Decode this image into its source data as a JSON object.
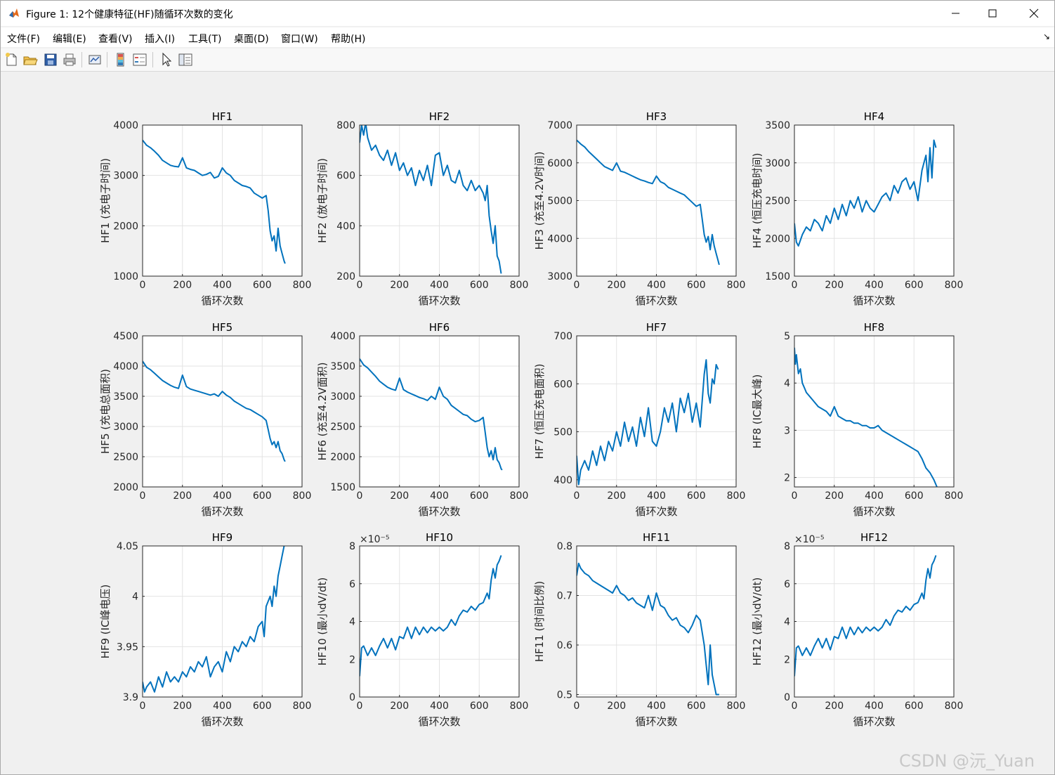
{
  "window": {
    "title": "Figure 1: 12个健康特征(HF)随循环次数的变化"
  },
  "menu": {
    "items": [
      "文件(F)",
      "编辑(E)",
      "查看(V)",
      "插入(I)",
      "工具(T)",
      "桌面(D)",
      "窗口(W)",
      "帮助(H)"
    ]
  },
  "toolbar": {
    "icons": [
      "new-figure-icon",
      "open-file-icon",
      "save-icon",
      "print-icon",
      "link-plot-icon",
      "insert-colorbar-icon",
      "insert-legend-icon",
      "edit-plot-icon",
      "property-inspector-icon"
    ]
  },
  "colors": {
    "line": "#0072BD",
    "grid": "#e3e3e3",
    "figure_bg": "#f0f0f0"
  },
  "watermark": "CSDN @沅_Yuan",
  "chart_data": [
    {
      "type": "line",
      "title": "HF1",
      "xlabel": "循环次数",
      "ylabel": "HF1 (充电子时间)",
      "xlim": [
        0,
        800
      ],
      "ylim": [
        1000,
        4000
      ],
      "xticks": [
        "0",
        "200",
        "400",
        "600",
        "800"
      ],
      "yticks": [
        "1000",
        "2000",
        "3000",
        "4000"
      ],
      "grid": true,
      "multiplier": "",
      "x": [
        0,
        20,
        40,
        60,
        80,
        100,
        120,
        140,
        160,
        180,
        200,
        220,
        240,
        260,
        280,
        300,
        320,
        340,
        360,
        380,
        400,
        420,
        440,
        460,
        480,
        500,
        520,
        540,
        560,
        580,
        600,
        620,
        630,
        640,
        650,
        660,
        670,
        680,
        690,
        700,
        710,
        715
      ],
      "y": [
        3700,
        3600,
        3550,
        3480,
        3400,
        3300,
        3250,
        3200,
        3180,
        3170,
        3350,
        3150,
        3120,
        3100,
        3050,
        3000,
        3020,
        3060,
        2950,
        2980,
        3150,
        3050,
        3000,
        2900,
        2850,
        2800,
        2780,
        2750,
        2650,
        2600,
        2550,
        2600,
        2300,
        1900,
        1700,
        1800,
        1500,
        1950,
        1600,
        1450,
        1300,
        1250
      ]
    },
    {
      "type": "line",
      "title": "HF2",
      "xlabel": "循环次数",
      "ylabel": "HF2 (放电子时间)",
      "xlim": [
        0,
        800
      ],
      "ylim": [
        200,
        800
      ],
      "xticks": [
        "0",
        "200",
        "400",
        "600",
        "800"
      ],
      "yticks": [
        "200",
        "400",
        "600",
        "800"
      ],
      "grid": true,
      "multiplier": "",
      "x": [
        0,
        10,
        20,
        30,
        40,
        60,
        80,
        100,
        120,
        140,
        160,
        180,
        200,
        220,
        240,
        260,
        280,
        300,
        320,
        340,
        360,
        380,
        400,
        420,
        440,
        460,
        480,
        500,
        520,
        540,
        560,
        580,
        600,
        620,
        630,
        640,
        650,
        660,
        670,
        680,
        690,
        700,
        710
      ],
      "y": [
        730,
        800,
        760,
        810,
        750,
        700,
        720,
        680,
        660,
        700,
        640,
        690,
        620,
        650,
        600,
        630,
        560,
        620,
        580,
        640,
        560,
        680,
        690,
        600,
        640,
        580,
        570,
        620,
        560,
        540,
        580,
        540,
        560,
        530,
        500,
        560,
        440,
        380,
        330,
        400,
        280,
        260,
        210
      ]
    },
    {
      "type": "line",
      "title": "HF3",
      "xlabel": "循环次数",
      "ylabel": "HF3 (充至4.2V时间)",
      "xlim": [
        0,
        800
      ],
      "ylim": [
        3000,
        7000
      ],
      "xticks": [
        "0",
        "200",
        "400",
        "600",
        "800"
      ],
      "yticks": [
        "3000",
        "4000",
        "5000",
        "6000",
        "7000"
      ],
      "grid": true,
      "multiplier": "",
      "x": [
        0,
        20,
        40,
        60,
        80,
        100,
        120,
        140,
        160,
        180,
        200,
        220,
        240,
        260,
        280,
        300,
        320,
        340,
        360,
        380,
        400,
        420,
        440,
        460,
        480,
        500,
        520,
        540,
        560,
        580,
        600,
        620,
        630,
        640,
        650,
        660,
        670,
        680,
        690,
        700,
        710,
        715
      ],
      "y": [
        6600,
        6500,
        6420,
        6300,
        6200,
        6100,
        6000,
        5900,
        5850,
        5800,
        6000,
        5780,
        5750,
        5700,
        5650,
        5600,
        5550,
        5520,
        5480,
        5450,
        5650,
        5500,
        5450,
        5350,
        5300,
        5250,
        5200,
        5150,
        5050,
        4950,
        4850,
        4900,
        4500,
        4100,
        3900,
        4050,
        3700,
        4100,
        3800,
        3600,
        3400,
        3300
      ]
    },
    {
      "type": "line",
      "title": "HF4",
      "xlabel": "循环次数",
      "ylabel": "HF4 (恒压充电时间)",
      "xlim": [
        0,
        800
      ],
      "ylim": [
        1500,
        3500
      ],
      "xticks": [
        "0",
        "200",
        "400",
        "600",
        "800"
      ],
      "yticks": [
        "1500",
        "2000",
        "2500",
        "3000",
        "3500"
      ],
      "grid": true,
      "multiplier": "",
      "x": [
        0,
        10,
        20,
        40,
        60,
        80,
        100,
        120,
        140,
        160,
        180,
        200,
        220,
        240,
        260,
        280,
        300,
        320,
        340,
        360,
        380,
        400,
        420,
        440,
        460,
        480,
        500,
        520,
        540,
        560,
        580,
        600,
        620,
        640,
        650,
        660,
        670,
        680,
        690,
        700,
        710
      ],
      "y": [
        2200,
        1950,
        1900,
        2050,
        2150,
        2100,
        2250,
        2200,
        2100,
        2300,
        2200,
        2400,
        2250,
        2450,
        2300,
        2500,
        2400,
        2550,
        2350,
        2500,
        2400,
        2350,
        2450,
        2550,
        2600,
        2500,
        2700,
        2600,
        2750,
        2800,
        2650,
        2750,
        2500,
        2900,
        3000,
        3100,
        2750,
        3200,
        2800,
        3300,
        3200
      ]
    },
    {
      "type": "line",
      "title": "HF5",
      "xlabel": "循环次数",
      "ylabel": "HF5 (充电总面积)",
      "xlim": [
        0,
        800
      ],
      "ylim": [
        2000,
        4500
      ],
      "xticks": [
        "0",
        "200",
        "400",
        "600",
        "800"
      ],
      "yticks": [
        "2000",
        "2500",
        "3000",
        "3500",
        "4000",
        "4500"
      ],
      "grid": true,
      "multiplier": "",
      "x": [
        0,
        20,
        40,
        60,
        80,
        100,
        120,
        140,
        160,
        180,
        200,
        220,
        240,
        260,
        280,
        300,
        320,
        340,
        360,
        380,
        400,
        420,
        440,
        460,
        480,
        500,
        520,
        540,
        560,
        580,
        600,
        620,
        630,
        640,
        650,
        660,
        670,
        680,
        690,
        700,
        710,
        715
      ],
      "y": [
        4080,
        3980,
        3940,
        3880,
        3820,
        3760,
        3720,
        3680,
        3650,
        3630,
        3850,
        3660,
        3620,
        3600,
        3580,
        3560,
        3540,
        3520,
        3540,
        3500,
        3580,
        3520,
        3480,
        3420,
        3380,
        3340,
        3300,
        3280,
        3240,
        3200,
        3160,
        3100,
        2950,
        2800,
        2700,
        2750,
        2650,
        2750,
        2600,
        2550,
        2450,
        2420
      ]
    },
    {
      "type": "line",
      "title": "HF6",
      "xlabel": "循环次数",
      "ylabel": "HF6 (充至4.2V面积)",
      "xlim": [
        0,
        800
      ],
      "ylim": [
        1500,
        4000
      ],
      "xticks": [
        "0",
        "200",
        "400",
        "600",
        "800"
      ],
      "yticks": [
        "1500",
        "2000",
        "2500",
        "3000",
        "3500",
        "4000"
      ],
      "grid": true,
      "multiplier": "",
      "x": [
        0,
        20,
        40,
        60,
        80,
        100,
        120,
        140,
        160,
        180,
        200,
        220,
        240,
        260,
        280,
        300,
        320,
        340,
        360,
        380,
        400,
        420,
        440,
        460,
        480,
        500,
        520,
        540,
        560,
        580,
        600,
        620,
        630,
        640,
        650,
        660,
        670,
        680,
        690,
        700,
        710,
        715
      ],
      "y": [
        3620,
        3520,
        3470,
        3400,
        3330,
        3250,
        3200,
        3150,
        3120,
        3100,
        3300,
        3110,
        3070,
        3040,
        3010,
        2980,
        2960,
        2930,
        3000,
        2950,
        3150,
        3000,
        2950,
        2850,
        2800,
        2750,
        2700,
        2680,
        2620,
        2580,
        2600,
        2650,
        2400,
        2150,
        2000,
        2100,
        1950,
        2150,
        1950,
        1900,
        1800,
        1780
      ]
    },
    {
      "type": "line",
      "title": "HF7",
      "xlabel": "循环次数",
      "ylabel": "HF7 (恒压充电面积)",
      "xlim": [
        0,
        800
      ],
      "ylim": [
        385,
        700
      ],
      "xticks": [
        "0",
        "200",
        "400",
        "600",
        "800"
      ],
      "yticks": [
        "400",
        "500",
        "600",
        "700"
      ],
      "grid": true,
      "multiplier": "",
      "x": [
        0,
        10,
        20,
        40,
        60,
        80,
        100,
        120,
        140,
        160,
        180,
        200,
        220,
        240,
        260,
        280,
        300,
        320,
        340,
        360,
        380,
        400,
        420,
        440,
        460,
        480,
        500,
        520,
        540,
        560,
        580,
        600,
        620,
        640,
        650,
        660,
        670,
        680,
        690,
        700,
        710
      ],
      "y": [
        450,
        390,
        420,
        440,
        420,
        460,
        430,
        470,
        440,
        480,
        460,
        500,
        470,
        520,
        480,
        510,
        470,
        530,
        490,
        550,
        480,
        470,
        500,
        550,
        520,
        560,
        500,
        570,
        540,
        580,
        520,
        560,
        510,
        620,
        650,
        580,
        560,
        610,
        600,
        640,
        630
      ]
    },
    {
      "type": "line",
      "title": "HF8",
      "xlabel": "循环次数",
      "ylabel": "HF8 (IC最大峰)",
      "xlim": [
        0,
        800
      ],
      "ylim": [
        1.8,
        5
      ],
      "xticks": [
        "0",
        "200",
        "400",
        "600",
        "800"
      ],
      "yticks": [
        "2",
        "3",
        "4",
        "5"
      ],
      "grid": true,
      "multiplier": "",
      "x": [
        0,
        5,
        10,
        20,
        30,
        40,
        50,
        60,
        80,
        100,
        120,
        140,
        160,
        180,
        200,
        220,
        240,
        260,
        280,
        300,
        320,
        340,
        360,
        380,
        400,
        420,
        440,
        460,
        480,
        500,
        520,
        540,
        560,
        580,
        600,
        620,
        640,
        660,
        680,
        700,
        715
      ],
      "y": [
        4.75,
        4.4,
        4.6,
        4.2,
        4.3,
        4.0,
        3.9,
        3.8,
        3.7,
        3.6,
        3.5,
        3.45,
        3.4,
        3.3,
        3.5,
        3.3,
        3.25,
        3.2,
        3.2,
        3.15,
        3.15,
        3.1,
        3.1,
        3.05,
        3.05,
        3.1,
        3.0,
        2.95,
        2.9,
        2.85,
        2.8,
        2.75,
        2.7,
        2.65,
        2.6,
        2.55,
        2.4,
        2.2,
        2.1,
        1.95,
        1.8
      ]
    },
    {
      "type": "line",
      "title": "HF9",
      "xlabel": "循环次数",
      "ylabel": "HF9 (IC峰电压)",
      "xlim": [
        0,
        800
      ],
      "ylim": [
        3.9,
        4.05
      ],
      "xticks": [
        "0",
        "200",
        "400",
        "600",
        "800"
      ],
      "yticks": [
        "3.9",
        "3.95",
        "4",
        "4.05"
      ],
      "grid": true,
      "multiplier": "",
      "x": [
        0,
        10,
        20,
        40,
        60,
        80,
        100,
        120,
        140,
        160,
        180,
        200,
        220,
        240,
        260,
        280,
        300,
        320,
        340,
        360,
        380,
        400,
        420,
        440,
        460,
        480,
        500,
        520,
        540,
        560,
        580,
        600,
        610,
        620,
        640,
        650,
        660,
        670,
        680,
        690,
        700,
        710
      ],
      "y": [
        3.915,
        3.905,
        3.91,
        3.915,
        3.905,
        3.92,
        3.91,
        3.925,
        3.915,
        3.92,
        3.915,
        3.925,
        3.92,
        3.93,
        3.925,
        3.935,
        3.93,
        3.94,
        3.92,
        3.93,
        3.935,
        3.925,
        3.945,
        3.935,
        3.95,
        3.945,
        3.955,
        3.95,
        3.96,
        3.955,
        3.97,
        3.975,
        3.96,
        3.99,
        4.0,
        3.99,
        4.01,
        4.0,
        4.02,
        4.03,
        4.04,
        4.05
      ]
    },
    {
      "type": "line",
      "title": "HF10",
      "xlabel": "循环次数",
      "ylabel": "HF10 (最小dV/dt)",
      "xlim": [
        0,
        800
      ],
      "ylim": [
        0,
        8
      ],
      "xticks": [
        "0",
        "200",
        "400",
        "600",
        "800"
      ],
      "yticks": [
        "0",
        "2",
        "4",
        "6",
        "8"
      ],
      "grid": true,
      "multiplier": "×10⁻⁵",
      "x": [
        0,
        10,
        20,
        40,
        60,
        80,
        100,
        120,
        140,
        160,
        180,
        200,
        220,
        240,
        260,
        280,
        300,
        320,
        340,
        360,
        380,
        400,
        420,
        440,
        460,
        480,
        500,
        520,
        540,
        560,
        580,
        600,
        620,
        640,
        650,
        660,
        670,
        680,
        690,
        700,
        710
      ],
      "y": [
        1.1,
        2.6,
        2.7,
        2.2,
        2.6,
        2.2,
        2.7,
        3.1,
        2.6,
        3.1,
        2.5,
        3.2,
        3.1,
        3.7,
        3.1,
        3.7,
        3.3,
        3.7,
        3.4,
        3.7,
        3.5,
        3.7,
        3.5,
        3.7,
        4.1,
        3.8,
        4.3,
        4.6,
        4.5,
        4.8,
        4.6,
        4.9,
        5.0,
        5.5,
        5.2,
        6.2,
        6.8,
        6.3,
        7.0,
        7.2,
        7.5
      ]
    },
    {
      "type": "line",
      "title": "HF11",
      "xlabel": "循环次数",
      "ylabel": "HF11 (时间比例)",
      "xlim": [
        0,
        800
      ],
      "ylim": [
        0.495,
        0.8
      ],
      "xticks": [
        "0",
        "200",
        "400",
        "600",
        "800"
      ],
      "yticks": [
        "0.5",
        "0.6",
        "0.7",
        "0.8"
      ],
      "grid": true,
      "multiplier": "",
      "x": [
        0,
        10,
        20,
        40,
        60,
        80,
        100,
        120,
        140,
        160,
        180,
        200,
        220,
        240,
        260,
        280,
        300,
        320,
        340,
        360,
        380,
        400,
        420,
        440,
        460,
        480,
        500,
        520,
        540,
        560,
        580,
        600,
        620,
        640,
        650,
        660,
        670,
        680,
        690,
        700,
        710,
        715
      ],
      "y": [
        0.74,
        0.765,
        0.755,
        0.745,
        0.74,
        0.73,
        0.725,
        0.72,
        0.715,
        0.71,
        0.705,
        0.72,
        0.705,
        0.7,
        0.69,
        0.695,
        0.685,
        0.68,
        0.675,
        0.7,
        0.67,
        0.705,
        0.68,
        0.675,
        0.66,
        0.65,
        0.655,
        0.64,
        0.635,
        0.625,
        0.64,
        0.66,
        0.65,
        0.6,
        0.56,
        0.52,
        0.6,
        0.54,
        0.52,
        0.5,
        0.5,
        0.5
      ]
    },
    {
      "type": "line",
      "title": "HF12",
      "xlabel": "循环次数",
      "ylabel": "HF12 (最小dV/dt)",
      "xlim": [
        0,
        800
      ],
      "ylim": [
        0,
        8
      ],
      "xticks": [
        "0",
        "200",
        "400",
        "600",
        "800"
      ],
      "yticks": [
        "0",
        "2",
        "4",
        "6",
        "8"
      ],
      "grid": true,
      "multiplier": "×10⁻⁵",
      "x": [
        0,
        10,
        20,
        40,
        60,
        80,
        100,
        120,
        140,
        160,
        180,
        200,
        220,
        240,
        260,
        280,
        300,
        320,
        340,
        360,
        380,
        400,
        420,
        440,
        460,
        480,
        500,
        520,
        540,
        560,
        580,
        600,
        620,
        640,
        650,
        660,
        670,
        680,
        690,
        700,
        710
      ],
      "y": [
        1.1,
        2.6,
        2.7,
        2.2,
        2.6,
        2.2,
        2.7,
        3.1,
        2.6,
        3.1,
        2.5,
        3.2,
        3.1,
        3.7,
        3.1,
        3.7,
        3.3,
        3.7,
        3.4,
        3.7,
        3.5,
        3.7,
        3.5,
        3.7,
        4.1,
        3.8,
        4.3,
        4.6,
        4.5,
        4.8,
        4.6,
        4.9,
        5.0,
        5.5,
        5.2,
        6.2,
        6.8,
        6.3,
        7.0,
        7.2,
        7.5
      ]
    }
  ]
}
